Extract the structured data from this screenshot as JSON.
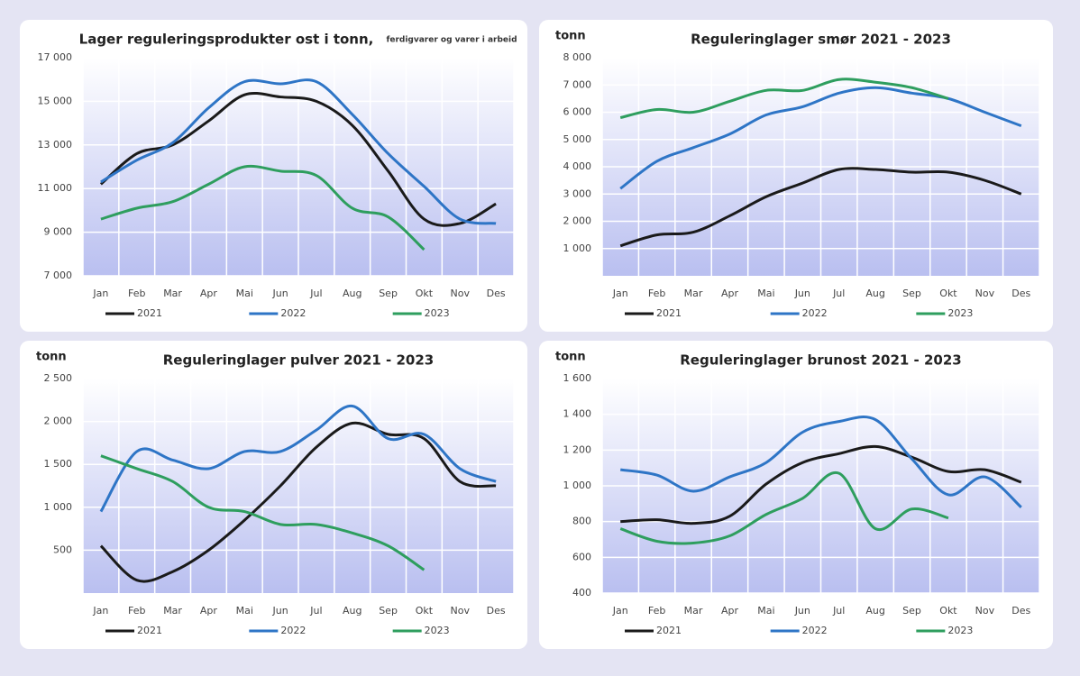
{
  "chart_data": [
    {
      "type": "line",
      "title": "Lager reguleringsprodukter  ost i tonn,",
      "subtitle": "ferdigvarer og varer i arbeid",
      "categories": [
        "Jan",
        "Feb",
        "Mar",
        "Apr",
        "Mai",
        "Jun",
        "Jul",
        "Aug",
        "Sep",
        "Okt",
        "Nov",
        "Des"
      ],
      "series": [
        {
          "name": "2021",
          "color": "#1a1a1a",
          "values": [
            11200,
            12600,
            13000,
            14100,
            15300,
            15200,
            15000,
            13900,
            11800,
            9600,
            9400,
            10300
          ]
        },
        {
          "name": "2022",
          "color": "#2e75c6",
          "values": [
            11300,
            12300,
            13100,
            14700,
            15900,
            15800,
            15900,
            14400,
            12600,
            11100,
            9600,
            9400
          ]
        },
        {
          "name": "2023",
          "color": "#2e9e5e",
          "values": [
            9600,
            10100,
            10400,
            11200,
            12000,
            11800,
            11600,
            10100,
            9700,
            8200,
            null,
            null
          ]
        }
      ],
      "ylim": [
        7000,
        17000
      ],
      "yticks": [
        {
          "value": 7000,
          "label": "7 000"
        },
        {
          "value": 9000,
          "label": "9 000"
        },
        {
          "value": 11000,
          "label": "11 000"
        },
        {
          "value": 13000,
          "label": "13 000"
        },
        {
          "value": 15000,
          "label": "15 000"
        },
        {
          "value": 17000,
          "label": "17 000"
        }
      ],
      "grid": true
    },
    {
      "type": "line",
      "title": "Reguleringlager smør 2021 - 2023",
      "y_label": "tonn",
      "categories": [
        "Jan",
        "Feb",
        "Mar",
        "Apr",
        "Mai",
        "Jun",
        "Jul",
        "Aug",
        "Sep",
        "Okt",
        "Nov",
        "Des"
      ],
      "series": [
        {
          "name": "2021",
          "color": "#1a1a1a",
          "values": [
            1100,
            1500,
            1600,
            2200,
            2900,
            3400,
            3900,
            3900,
            3800,
            3800,
            3500,
            3000
          ]
        },
        {
          "name": "2022",
          "color": "#2e75c6",
          "values": [
            3200,
            4200,
            4700,
            5200,
            5900,
            6200,
            6700,
            6900,
            6700,
            6500,
            6000,
            5500
          ]
        },
        {
          "name": "2023",
          "color": "#2e9e5e",
          "values": [
            5800,
            6100,
            6000,
            6400,
            6800,
            6800,
            7200,
            7100,
            6900,
            6500,
            null,
            null
          ]
        }
      ],
      "ylim": [
        0,
        8000
      ],
      "yticks": [
        {
          "value": 1000,
          "label": "1 000"
        },
        {
          "value": 2000,
          "label": "2 000"
        },
        {
          "value": 3000,
          "label": "3 000"
        },
        {
          "value": 4000,
          "label": "4 000"
        },
        {
          "value": 5000,
          "label": "5 000"
        },
        {
          "value": 6000,
          "label": "6 000"
        },
        {
          "value": 7000,
          "label": "7 000"
        },
        {
          "value": 8000,
          "label": "8 000"
        }
      ],
      "grid": true
    },
    {
      "type": "line",
      "title": "Reguleringlager pulver 2021 - 2023",
      "y_label": "tonn",
      "categories": [
        "Jan",
        "Feb",
        "Mar",
        "Apr",
        "Mai",
        "Jun",
        "Jul",
        "Aug",
        "Sep",
        "Okt",
        "Nov",
        "Des"
      ],
      "series": [
        {
          "name": "2021",
          "color": "#1a1a1a",
          "values": [
            550,
            150,
            250,
            500,
            850,
            1250,
            1700,
            1980,
            1850,
            1800,
            1300,
            1250
          ]
        },
        {
          "name": "2022",
          "color": "#2e75c6",
          "values": [
            950,
            1650,
            1550,
            1450,
            1650,
            1650,
            1900,
            2180,
            1800,
            1850,
            1450,
            1300
          ]
        },
        {
          "name": "2023",
          "color": "#2e9e5e",
          "values": [
            1600,
            1450,
            1300,
            1000,
            950,
            800,
            800,
            700,
            550,
            270,
            null,
            null
          ]
        }
      ],
      "ylim": [
        0,
        2500
      ],
      "yticks": [
        500,
        {
          "value": 1000,
          "label": "1 000"
        },
        {
          "value": 1500,
          "label": "1 500"
        },
        {
          "value": 2000,
          "label": "2 000"
        },
        {
          "value": 2500,
          "label": "2 500"
        }
      ],
      "grid": true
    },
    {
      "type": "line",
      "title": "Reguleringlager brunost 2021 - 2023",
      "y_label": "tonn",
      "categories": [
        "Jan",
        "Feb",
        "Mar",
        "Apr",
        "Mai",
        "Jun",
        "Jul",
        "Aug",
        "Sep",
        "Okt",
        "Nov",
        "Des"
      ],
      "series": [
        {
          "name": "2021",
          "color": "#1a1a1a",
          "values": [
            800,
            810,
            790,
            830,
            1010,
            1130,
            1180,
            1220,
            1160,
            1080,
            1090,
            1020
          ]
        },
        {
          "name": "2022",
          "color": "#2e75c6",
          "values": [
            1090,
            1060,
            970,
            1050,
            1130,
            1300,
            1360,
            1370,
            1150,
            950,
            1050,
            880
          ]
        },
        {
          "name": "2023",
          "color": "#2e9e5e",
          "values": [
            760,
            690,
            680,
            720,
            840,
            930,
            1070,
            760,
            870,
            820,
            null,
            null
          ]
        }
      ],
      "ylim": [
        400,
        1600
      ],
      "yticks": [
        400,
        600,
        800,
        {
          "value": 1000,
          "label": "1 000"
        },
        {
          "value": 1200,
          "label": "1 200"
        },
        {
          "value": 1400,
          "label": "1 400"
        },
        {
          "value": 1600,
          "label": "1 600"
        }
      ],
      "grid": true
    }
  ]
}
